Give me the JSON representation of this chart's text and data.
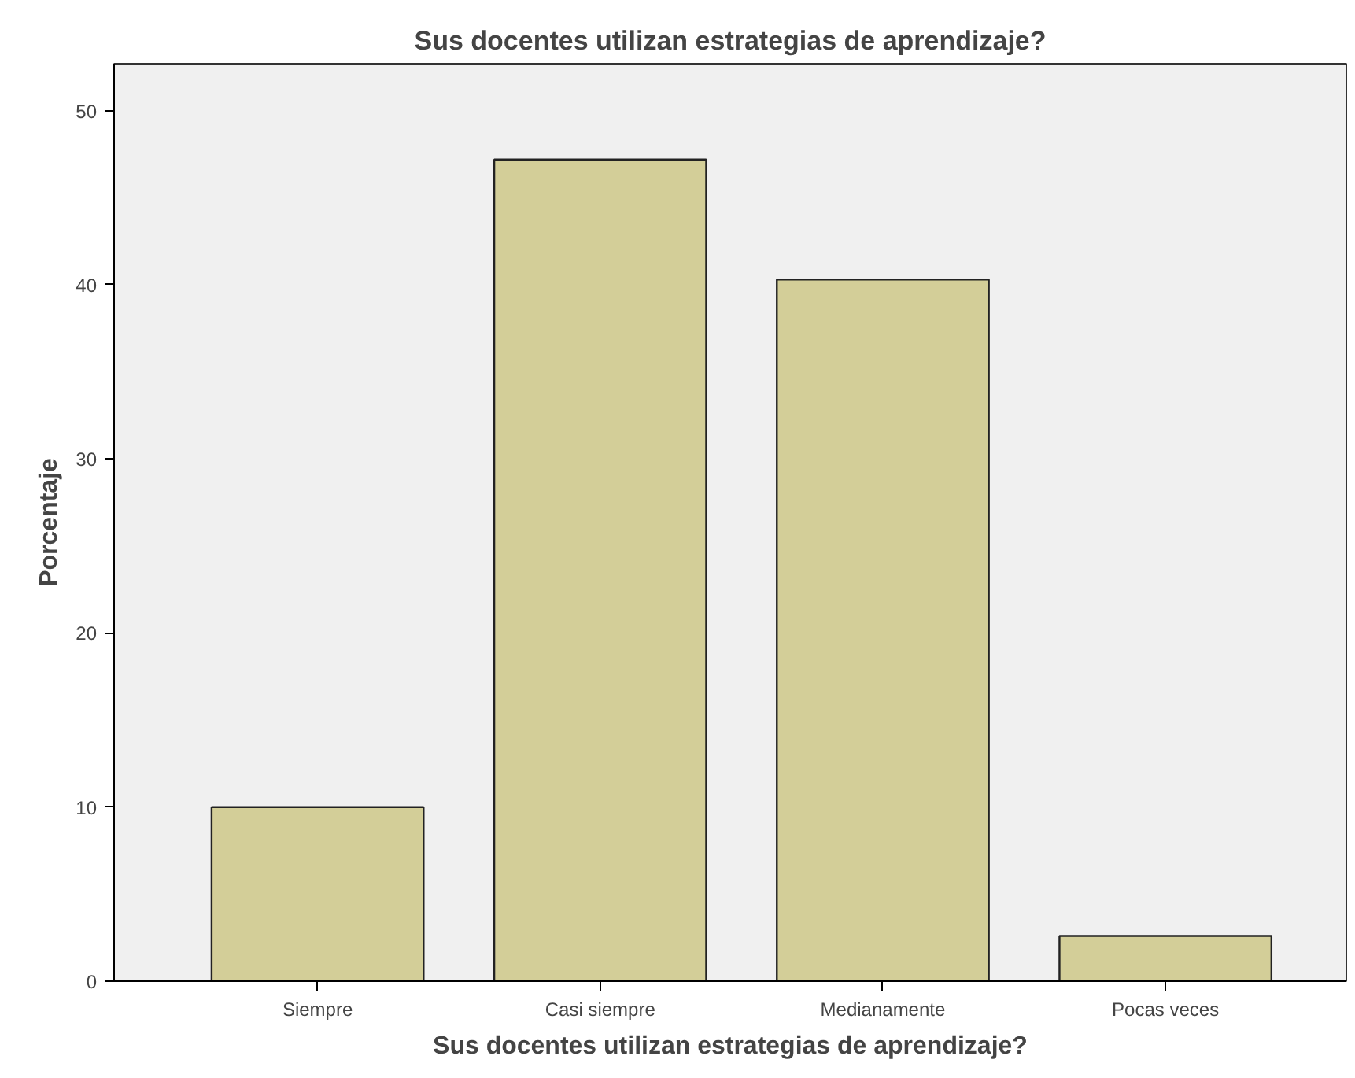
{
  "chart_data": {
    "type": "bar",
    "title": "Sus docentes utilizan estrategias de aprendizaje?",
    "xlabel": "Sus docentes utilizan estrategias de aprendizaje?",
    "ylabel": "Porcentaje",
    "categories": [
      "Siempre",
      "Casi siempre",
      "Medianamente",
      "Pocas veces"
    ],
    "values": [
      10.0,
      47.2,
      40.3,
      2.6
    ],
    "color": "#d3ce98",
    "ylim": [
      0,
      52.7
    ],
    "yticks": [
      0,
      10,
      20,
      30,
      40,
      50
    ],
    "grid": false
  }
}
